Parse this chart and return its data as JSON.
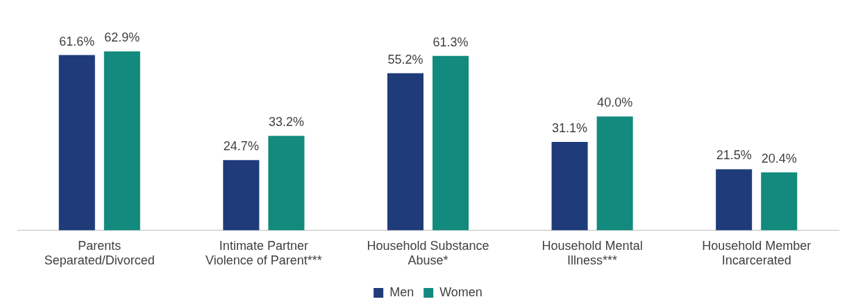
{
  "chart_data": {
    "type": "bar",
    "categories": [
      "Parents Separated/Divorced",
      "Intimate Partner Violence of Parent***",
      "Household Substance Abuse*",
      "Household Mental Illness***",
      "Household Member Incarcerated"
    ],
    "series": [
      {
        "name": "Men",
        "color": "#1f3b7a",
        "values": [
          61.6,
          24.7,
          55.2,
          31.1,
          21.5
        ],
        "value_labels": [
          "61.6%",
          "24.7%",
          "55.2%",
          "31.1%",
          "21.5%"
        ]
      },
      {
        "name": "Women",
        "color": "#138a7e",
        "values": [
          62.9,
          33.2,
          61.3,
          40.0,
          20.4
        ],
        "value_labels": [
          "62.9%",
          "33.2%",
          "61.3%",
          "40.0%",
          "20.4%"
        ]
      }
    ],
    "legend": "bottom",
    "grid": false,
    "tick_labels": "x"
  }
}
